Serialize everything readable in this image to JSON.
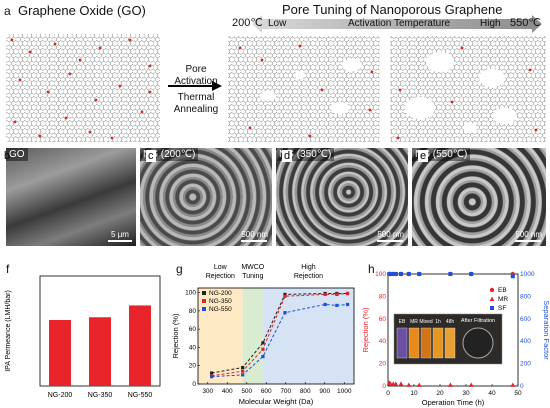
{
  "panel_a": {
    "letter": "a",
    "title": "Graphene Oxide (GO)",
    "right_title": "Pore Tuning of Nanoporous Graphene",
    "temp_low": "200℃",
    "temp_high": "550℃",
    "arrow_low": "Low",
    "arrow_mid": "Activation Temperature",
    "arrow_high": "High",
    "process_1": "Pore Activation",
    "process_2": "Thermal Annealing",
    "colors": {
      "lattice": "#555555",
      "oxygen": "#d62728",
      "arrow": "#9a9a9a"
    }
  },
  "sem": [
    {
      "letter": "b",
      "tag": "GO",
      "scale": "5 μm"
    },
    {
      "letter": "c",
      "tag": "NG (200℃)",
      "scale": "500 nm"
    },
    {
      "letter": "d",
      "tag": "NG (350℃)",
      "scale": "500 nm"
    },
    {
      "letter": "e",
      "tag": "NG (550℃)",
      "scale": "500 nm"
    }
  ],
  "panel_f": {
    "letter": "f",
    "chart_data": {
      "type": "bar",
      "categories": [
        "NG-200",
        "NG-350",
        "NG-550"
      ],
      "values": [
        240,
        250,
        293
      ],
      "ylabel": "IPA Permeance (LMH/bar)",
      "ylim": [
        0,
        400
      ],
      "color": "#e8232a"
    }
  },
  "panel_g": {
    "letter": "g",
    "regions": [
      "Low Rejection",
      "MWCO Tuning",
      "High Rejection"
    ],
    "region_colors": [
      "#fde9c4",
      "#d9ecd2",
      "#d6e3f5"
    ],
    "chart_data": {
      "type": "line",
      "xlabel": "Molecular Weight (Da)",
      "ylabel": "Rejection (%)",
      "xlim": [
        250,
        1050
      ],
      "ylim": [
        0,
        105
      ],
      "xticks": [
        300,
        400,
        500,
        600,
        700,
        800,
        900,
        1000
      ],
      "yticks": [
        0,
        20,
        40,
        60,
        80,
        100
      ],
      "series": [
        {
          "name": "NG-200",
          "color": "#222222",
          "x": [
            320,
            479,
            583,
            696,
            902,
            962,
            1017
          ],
          "y": [
            12,
            18,
            45,
            98,
            99,
            99,
            99
          ]
        },
        {
          "name": "NG-350",
          "color": "#d62728",
          "x": [
            320,
            479,
            583,
            696,
            902,
            962,
            1017
          ],
          "y": [
            9,
            14,
            38,
            96,
            98,
            98,
            99
          ]
        },
        {
          "name": "NG-550",
          "color": "#1f4fd8",
          "x": [
            320,
            479,
            583,
            696,
            902,
            962,
            1017
          ],
          "y": [
            8,
            10,
            30,
            78,
            87,
            86,
            87
          ]
        }
      ]
    }
  },
  "panel_h": {
    "letter": "h",
    "inset_labels": [
      "EB",
      "MR",
      "Mixed",
      "1h",
      "48h"
    ],
    "inset_title": "After Filtration",
    "chart_data": {
      "type": "scatter",
      "xlabel": "Operation Time (h)",
      "ylabel": "Rejection (%)",
      "y2label": "Separation Factor",
      "xlim": [
        0,
        50
      ],
      "ylim": [
        0,
        100
      ],
      "y2lim": [
        0,
        1000
      ],
      "xticks": [
        0,
        10,
        20,
        30,
        40,
        50
      ],
      "yticks": [
        0,
        20,
        40,
        60,
        80,
        100
      ],
      "y2ticks": [
        0,
        200,
        400,
        600,
        800,
        1000
      ],
      "series": [
        {
          "name": "EB",
          "color": "#e8232a",
          "marker": "circle",
          "axis": "left",
          "x": [
            0.5,
            1,
            2,
            3,
            5,
            8,
            12,
            24,
            32,
            48
          ],
          "y": [
            100,
            100,
            100,
            100,
            100,
            100,
            100,
            100,
            100,
            100
          ]
        },
        {
          "name": "MR",
          "color": "#e8232a",
          "marker": "triangle",
          "axis": "left",
          "x": [
            0.5,
            1,
            2,
            3,
            5,
            8,
            12,
            24,
            32,
            48
          ],
          "y": [
            3,
            2,
            2,
            2,
            2,
            1,
            1,
            1,
            1,
            1
          ]
        },
        {
          "name": "SF",
          "color": "#1f4fd8",
          "marker": "square",
          "axis": "right",
          "x": [
            0.5,
            1,
            2,
            3,
            5,
            8,
            12,
            24,
            32,
            48
          ],
          "y": [
            1000,
            1000,
            1000,
            1000,
            1000,
            1000,
            1000,
            1000,
            1000,
            980
          ]
        }
      ]
    }
  }
}
